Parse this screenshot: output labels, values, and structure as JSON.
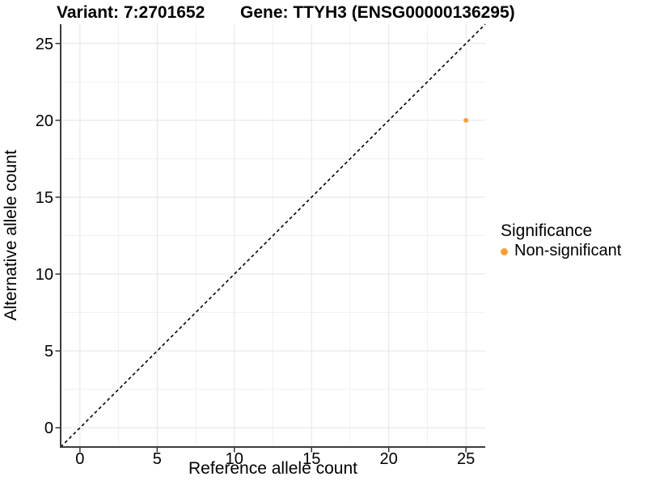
{
  "header": {
    "variant_title": "Variant: 7:2701652",
    "gene_title": "Gene: TTYH3 (ENSG00000136295)"
  },
  "chart_data": {
    "type": "scatter",
    "title": "Variant: 7:2701652   Gene: TTYH3 (ENSG00000136295)",
    "xlabel": "Reference allele count",
    "ylabel": "Alternative allele count",
    "xlim": [
      -1.25,
      26.25
    ],
    "ylim": [
      -1.25,
      26.25
    ],
    "x_ticks": [
      0,
      5,
      10,
      15,
      20,
      25
    ],
    "y_ticks": [
      0,
      5,
      10,
      15,
      20,
      25
    ],
    "minor_ticks": [
      2.5,
      7.5,
      12.5,
      17.5,
      22.5
    ],
    "grid": true,
    "series": [
      {
        "name": "Non-significant",
        "color": "#F9A132",
        "points": [
          {
            "x": 25,
            "y": 20
          }
        ]
      }
    ],
    "reference_line": {
      "style": "dashed",
      "slope": 1,
      "intercept": 0,
      "color": "#000000"
    },
    "legend": {
      "title": "Significance",
      "position": "right",
      "entries": [
        {
          "label": "Non-significant",
          "color": "#F9A132"
        }
      ]
    }
  },
  "style_colors": {
    "grid_major": "#E4E4E4",
    "grid_minor": "#F1F1F1",
    "axis_line": "#3C3C3C",
    "tick_mark": "#333333",
    "text": "#000000"
  }
}
